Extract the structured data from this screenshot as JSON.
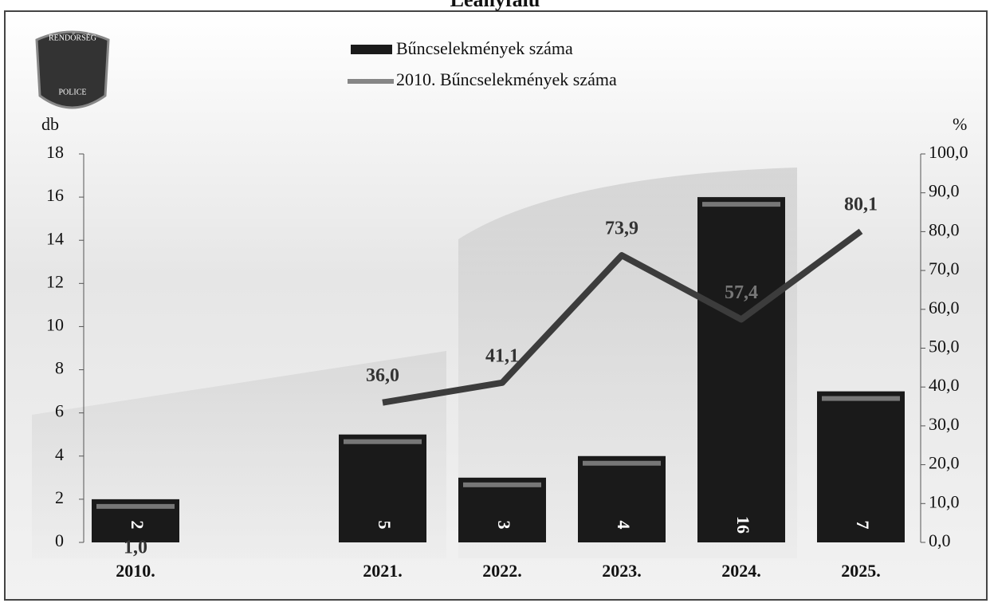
{
  "logo": {
    "top": "RENDŐRSÉG",
    "bottom": "POLICE"
  },
  "chart_data": {
    "type": "bar_line",
    "title": "Leányfalu",
    "categories": [
      "2010.",
      null,
      "2021.",
      "2022.",
      "2023.",
      "2024.",
      "2025."
    ],
    "series": [
      {
        "name": "Bűncselekmények száma",
        "color": "#1a1a1a",
        "values": [
          2,
          null,
          5,
          3,
          4,
          16,
          7
        ]
      },
      {
        "name": "2010. Bűncselekmények száma",
        "color": "#3c3c3c",
        "axis": "y2",
        "values": [
          1.0,
          null,
          36.0,
          41.1,
          73.9,
          57.4,
          80.1
        ],
        "value_labels": [
          "1,0",
          null,
          "36,0",
          "41,1",
          "73,9",
          "57,4",
          "80,1"
        ]
      }
    ],
    "ylabel": "db",
    "y2label": "%",
    "ylim": [
      0,
      18
    ],
    "yticks": [
      0,
      2,
      4,
      6,
      8,
      10,
      12,
      14,
      16,
      18
    ],
    "y2lim": [
      0,
      100
    ],
    "y2ticks": [
      {
        "value": 0,
        "label": "0,0"
      },
      {
        "value": 10,
        "label": "10,0"
      },
      {
        "value": 20,
        "label": "20,0"
      },
      {
        "value": 30,
        "label": "30,0"
      },
      {
        "value": 40,
        "label": "40,0"
      },
      {
        "value": 50,
        "label": "50,0"
      },
      {
        "value": 60,
        "label": "60,0"
      },
      {
        "value": 70,
        "label": "70,0"
      },
      {
        "value": 80,
        "label": "80,0"
      },
      {
        "value": 90,
        "label": "90,0"
      },
      {
        "value": 100,
        "label": "100,0"
      }
    ]
  }
}
